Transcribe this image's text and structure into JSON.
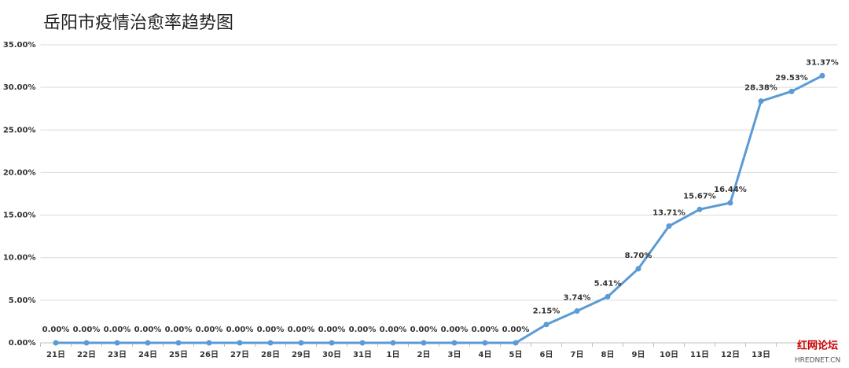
{
  "chart_data": {
    "type": "line",
    "title": "岳阳市疫情治愈率趋势图",
    "categories": [
      "21日",
      "22日",
      "23日",
      "24日",
      "25日",
      "26日",
      "27日",
      "28日",
      "29日",
      "30日",
      "31日",
      "1日",
      "2日",
      "3日",
      "4日",
      "5日",
      "6日",
      "7日",
      "8日",
      "9日",
      "10日",
      "11日",
      "12日",
      "13日",
      null,
      null
    ],
    "series": [
      {
        "name": "治愈率",
        "color": "#5b9bd5",
        "values": [
          0,
          0,
          0,
          0,
          0,
          0,
          0,
          0,
          0,
          0,
          0,
          0,
          0,
          0,
          0,
          0,
          2.15,
          3.74,
          5.41,
          8.7,
          13.71,
          15.67,
          16.44,
          28.38,
          29.53,
          31.37
        ],
        "value_labels": [
          "0.00%",
          "0.00%",
          "0.00%",
          "0.00%",
          "0.00%",
          "0.00%",
          "0.00%",
          "0.00%",
          "0.00%",
          "0.00%",
          "0.00%",
          "0.00%",
          "0.00%",
          "0.00%",
          "0.00%",
          "0.00%",
          "2.15%",
          "3.74%",
          "5.41%",
          "8.70%",
          "13.71%",
          "15.67%",
          "16.44%",
          "28.38%",
          "29.53%",
          "31.37%"
        ]
      }
    ],
    "ylim": [
      0,
      35
    ],
    "yticks": [
      {
        "value": 0,
        "label": "0.00%"
      },
      {
        "value": 5,
        "label": "5.00%"
      },
      {
        "value": 10,
        "label": "10.00%"
      },
      {
        "value": 15,
        "label": "15.00%"
      },
      {
        "value": 20,
        "label": "20.00%"
      },
      {
        "value": 25,
        "label": "25.00%"
      },
      {
        "value": 30,
        "label": "30.00%"
      },
      {
        "value": 35,
        "label": "35.00%"
      }
    ],
    "grid": true,
    "watermark": {
      "name": "红网论坛",
      "site": "HREDNET.CN"
    }
  }
}
